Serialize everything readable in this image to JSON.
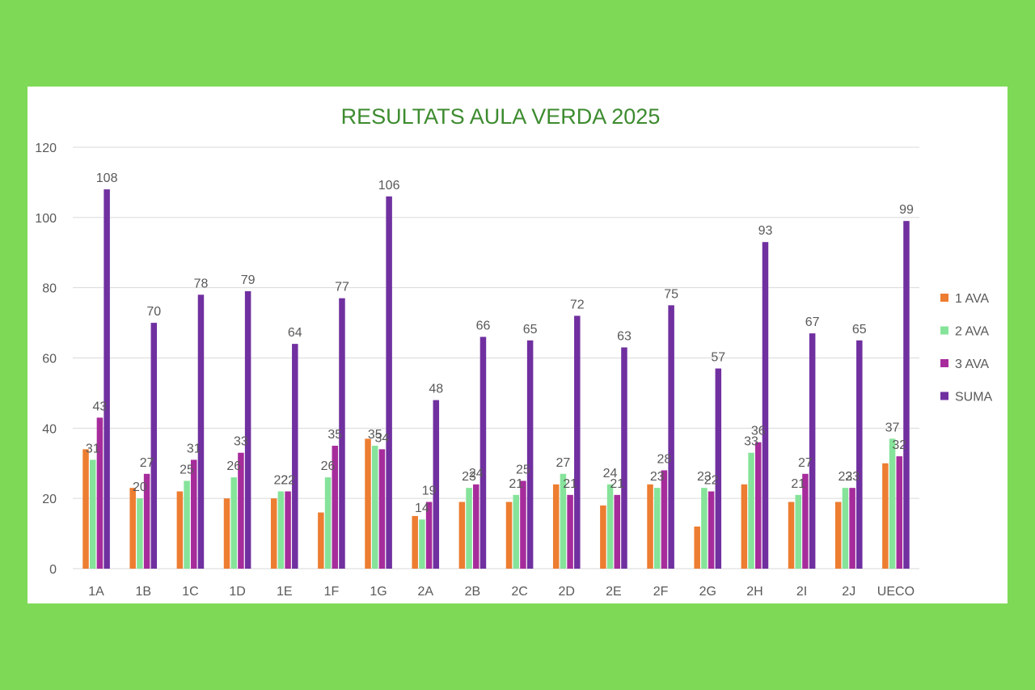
{
  "colors": {
    "background": "#7ed957",
    "title": "#3d8b2f",
    "grid": "#d9d9d9",
    "text": "#595959"
  },
  "chart_data": {
    "type": "bar",
    "title": "RESULTATS AULA VERDA 2025",
    "xlabel": "",
    "ylabel": "",
    "ylim": [
      0,
      120
    ],
    "yticks": [
      0,
      20,
      40,
      60,
      80,
      100,
      120
    ],
    "grid": true,
    "legend_position": "right",
    "categories": [
      "1A",
      "1B",
      "1C",
      "1D",
      "1E",
      "1F",
      "1G",
      "2A",
      "2B",
      "2C",
      "2D",
      "2E",
      "2F",
      "2G",
      "2H",
      "2I",
      "2J",
      "UECO"
    ],
    "series": [
      {
        "name": "1 AVA",
        "color": "#ed7d31",
        "show_labels": false,
        "values": [
          34,
          23,
          22,
          20,
          20,
          16,
          37,
          15,
          19,
          19,
          24,
          18,
          24,
          12,
          24,
          19,
          19,
          30
        ]
      },
      {
        "name": "2 AVA",
        "color": "#86e39a",
        "show_labels": true,
        "values": [
          31,
          20,
          25,
          26,
          22,
          26,
          35,
          14,
          23,
          21,
          27,
          24,
          23,
          23,
          33,
          21,
          23,
          37
        ]
      },
      {
        "name": "3 AVA",
        "color": "#a62c9c",
        "show_labels": true,
        "values": [
          43,
          27,
          31,
          33,
          22,
          35,
          34,
          19,
          24,
          25,
          21,
          21,
          28,
          22,
          36,
          27,
          23,
          32
        ]
      },
      {
        "name": "SUMA",
        "color": "#7030a0",
        "show_labels": true,
        "values": [
          108,
          70,
          78,
          79,
          64,
          77,
          106,
          48,
          66,
          65,
          72,
          63,
          75,
          57,
          93,
          67,
          65,
          99
        ]
      }
    ]
  }
}
